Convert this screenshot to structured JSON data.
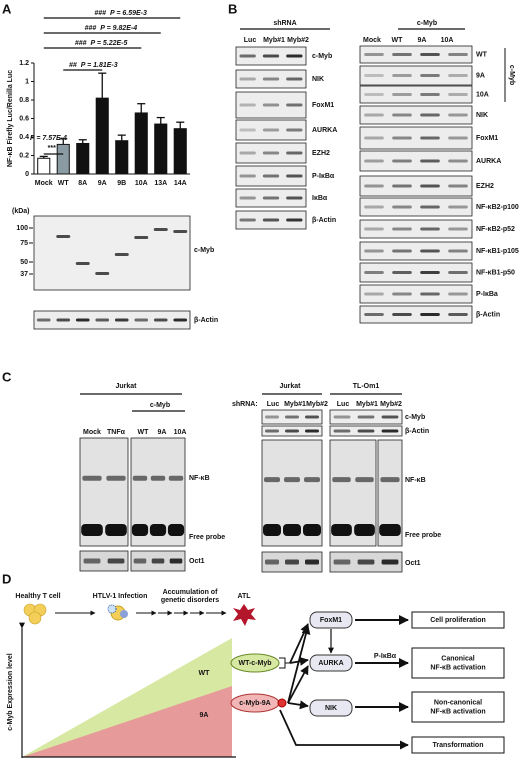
{
  "panel_labels": [
    "A",
    "B",
    "C",
    "D"
  ],
  "chart_data": {
    "type": "bar",
    "ylabel": "NF-κB Firefly Luc/Renilla Luc",
    "categories": [
      "Mock",
      "WT",
      "8A",
      "9A",
      "9B",
      "10A",
      "13A",
      "14A"
    ],
    "values": [
      0.17,
      0.32,
      0.33,
      0.82,
      0.36,
      0.66,
      0.54,
      0.49
    ],
    "errors": [
      0.02,
      0.06,
      0.04,
      0.27,
      0.06,
      0.1,
      0.07,
      0.07
    ],
    "colors": [
      "#ffffff",
      "#8a9ba3",
      "#111111",
      "#111111",
      "#111111",
      "#111111",
      "#111111",
      "#111111"
    ],
    "ylim": [
      0,
      1.2
    ],
    "yticks": [
      0,
      0.2,
      0.4,
      0.6,
      0.8,
      1,
      1.2
    ],
    "annotations": [
      {
        "marks": "###",
        "text": "P = 6.59E-3"
      },
      {
        "marks": "###",
        "text": "P = 9.82E-4"
      },
      {
        "marks": "###",
        "text": "P = 5.22E-5"
      },
      {
        "marks": "##",
        "text": "P = 1.81E-3"
      },
      {
        "marks": "***",
        "text": "P = 7.57E-4"
      }
    ]
  },
  "blot_a": {
    "kda": "(kDa)",
    "markers": [
      "100",
      "75",
      "50",
      "37"
    ],
    "labels": [
      "c-Myb",
      "β-Actin"
    ]
  },
  "panel_b": {
    "left_header": "shRNA",
    "left_lanes": [
      "Luc",
      "Myb#1",
      "Myb#2"
    ],
    "left_rows": [
      "c-Myb",
      "NIK",
      "FoxM1",
      "AURKA",
      "EZH2",
      "P-IκBα",
      "IκBα",
      "β-Actin"
    ],
    "right_header": "c-Myb",
    "right_lanes": [
      "Mock",
      "WT",
      "9A",
      "10A"
    ],
    "right_rows": [
      "WT",
      "9A",
      "10A",
      "NIK",
      "FoxM1",
      "AURKA",
      "EZH2",
      "NF-κB2-p100",
      "NF-κB2-p52",
      "NF-κB1-p105",
      "NF-κB1-p50",
      "P-IκBa",
      "β-Actin"
    ],
    "bracket": "c-Myb"
  },
  "panel_c": {
    "left_cell": "Jurkat",
    "left_group": "c-Myb",
    "left_lanes": [
      "Mock",
      "TNFα",
      "WT",
      "9A",
      "10A"
    ],
    "right_cells": [
      "Jurkat",
      "TL-Om1"
    ],
    "shrna": "shRNA:",
    "right_lanes": [
      "Luc",
      "Myb#1",
      "Myb#2",
      "Luc",
      "Myb#1",
      "Myb#2"
    ],
    "blot_labels": [
      "c-Myb",
      "β-Actin"
    ],
    "gel_labels": [
      "NF-κB",
      "Free probe",
      "Oct1"
    ]
  },
  "panel_d": {
    "steps": [
      "Healthy T cell",
      "HTLV-1 Infection",
      "Accumulation of",
      "genetic disorders",
      "ATL"
    ],
    "ylabel": "c-Myb Expression level",
    "areas": [
      "WT",
      "9A"
    ],
    "proteins": [
      "WT-c-Myb",
      "c-Myb-9A"
    ],
    "targets": [
      "FoxM1",
      "AURKA",
      "NIK"
    ],
    "phospho": "P-IκBα",
    "outcomes": [
      [
        "Cell proliferation"
      ],
      [
        "Canonical",
        "NF-κB activation"
      ],
      [
        "Non-canonical",
        "NF-κB activation"
      ],
      [
        "Transformation"
      ]
    ]
  }
}
